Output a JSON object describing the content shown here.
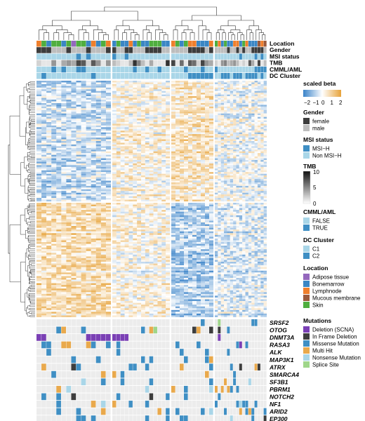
{
  "chart_data": {
    "type": "heatmap",
    "annotation_rows": [
      "Location",
      "Gender",
      "MSI status",
      "TMB",
      "CMML/AML",
      "DC Cluster"
    ],
    "mutation_genes": [
      "SRSF2",
      "OTOG",
      "DNMT3A",
      "RASA3",
      "ALK",
      "MAP3K1",
      "ATRX",
      "SMARCA4",
      "SF3B1",
      "PBRM1",
      "NOTCH2",
      "NF1",
      "ARID2",
      "EP300"
    ],
    "legends": {
      "scaled_beta": {
        "title": "scaled beta",
        "ticks": [
          "−2",
          "−1",
          "0",
          "1",
          "2"
        ],
        "range": [
          -2,
          2
        ],
        "low_color": "#3a83c9",
        "mid_color": "#ffffff",
        "high_color": "#e7a33a"
      },
      "gender": {
        "title": "Gender",
        "items": [
          {
            "label": "female",
            "color": "#3d3d3d"
          },
          {
            "label": "male",
            "color": "#bdbdbd"
          }
        ]
      },
      "msi_status": {
        "title": "MSI status",
        "items": [
          {
            "label": "MSI−H",
            "color": "#3f8fc4"
          },
          {
            "label": "Non MSI−H",
            "color": "#a9d6e8"
          }
        ]
      },
      "tmb": {
        "title": "TMB",
        "ticks": [
          "10",
          "5",
          "0"
        ],
        "range": [
          0,
          10
        ],
        "low_color": "#ffffff",
        "high_color": "#111111"
      },
      "cmml_aml": {
        "title": "CMML/AML",
        "items": [
          {
            "label": "FALSE",
            "color": "#a9d6e8"
          },
          {
            "label": "TRUE",
            "color": "#3f8fc4"
          }
        ]
      },
      "dc_cluster": {
        "title": "DC Cluster",
        "items": [
          {
            "label": "C1",
            "color": "#a9d6e8"
          },
          {
            "label": "C2",
            "color": "#3f8fc4"
          }
        ]
      },
      "location": {
        "title": "Location",
        "items": [
          {
            "label": "Adipose tissue",
            "color": "#9468bd"
          },
          {
            "label": "Bonemarrow",
            "color": "#3a86c4"
          },
          {
            "label": "Lymphnode",
            "color": "#ef7f2c"
          },
          {
            "label": "Mucous membrane",
            "color": "#9b5a3c"
          },
          {
            "label": "Skin",
            "color": "#4fae3f"
          }
        ]
      },
      "mutations": {
        "title": "Mutations",
        "items": [
          {
            "label": "Deletion (SCNA)",
            "color": "#7a3fb5"
          },
          {
            "label": "In Frame Deletion",
            "color": "#3d3d3d"
          },
          {
            "label": "Missense Mutation",
            "color": "#3f8fc4"
          },
          {
            "label": "Multi Hit",
            "color": "#e9a94c"
          },
          {
            "label": "Nonsense Mutation",
            "color": "#a9d6e8"
          },
          {
            "label": "Splice Site",
            "color": "#9fd68a"
          }
        ]
      }
    },
    "column_groups": 4,
    "row_groups": 2
  }
}
